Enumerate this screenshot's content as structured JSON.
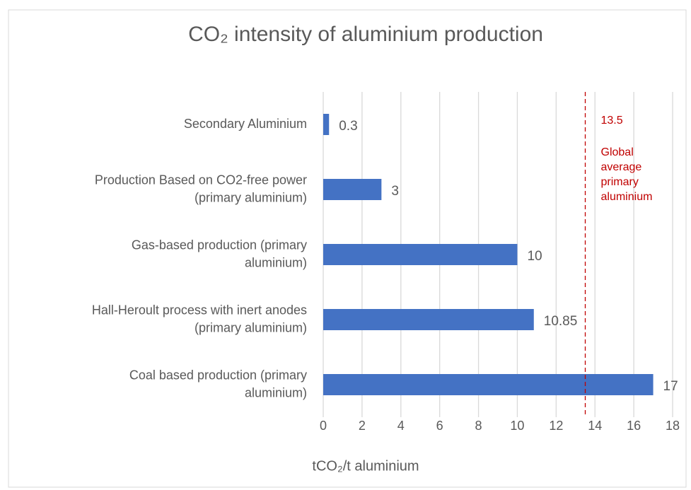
{
  "chart_data": {
    "type": "hbar",
    "title": "CO₂ intensity of aluminium production",
    "x_label": "tCO₂/t aluminium",
    "categories": [
      "Secondary Aluminium",
      "Production Based on CO2-free power\n(primary aluminium)",
      "Gas-based production (primary\naluminium)",
      "Hall-Heroult process with inert anodes\n(primary aluminium)",
      "Coal based production (primary\naluminium)"
    ],
    "values": [
      0.3,
      3,
      10,
      10.85,
      17
    ],
    "color": "#4472c4",
    "xlim": [
      0,
      18
    ],
    "xticks": [
      0,
      2,
      4,
      6,
      8,
      10,
      12,
      14,
      16,
      18
    ],
    "grid": true,
    "reference_line": {
      "value": 13.5,
      "label": "Global\naverage\nprimary\naluminium",
      "color": "#c00000"
    }
  }
}
